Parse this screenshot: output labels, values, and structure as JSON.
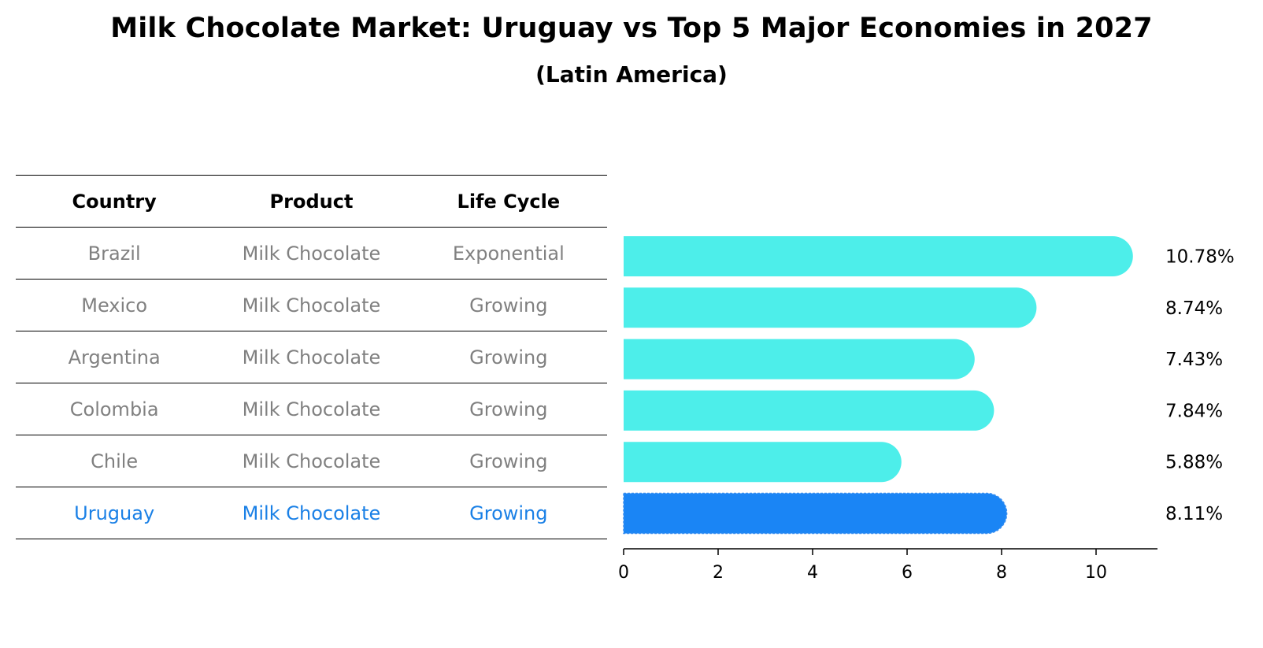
{
  "title": "Milk Chocolate Market: Uruguay vs Top 5 Major Economies in 2027",
  "subtitle": "(Latin America)",
  "table": {
    "headers": [
      "Country",
      "Product",
      "Life Cycle"
    ],
    "rows": [
      {
        "country": "Brazil",
        "product": "Milk Chocolate",
        "life_cycle": "Exponential",
        "highlight": false
      },
      {
        "country": "Mexico",
        "product": "Milk Chocolate",
        "life_cycle": "Growing",
        "highlight": false
      },
      {
        "country": "Argentina",
        "product": "Milk Chocolate",
        "life_cycle": "Growing",
        "highlight": false
      },
      {
        "country": "Colombia",
        "product": "Milk Chocolate",
        "life_cycle": "Growing",
        "highlight": false
      },
      {
        "country": "Chile",
        "product": "Milk Chocolate",
        "life_cycle": "Growing",
        "highlight": false
      },
      {
        "country": "Uruguay",
        "product": "Milk Chocolate",
        "life_cycle": "Growing",
        "highlight": true
      }
    ]
  },
  "colors": {
    "bar": "#4deeea",
    "highlight_bar": "#1a85f5",
    "highlight_text": "#1a80e6",
    "muted_text": "#808080"
  },
  "chart_data": {
    "type": "bar",
    "orientation": "horizontal",
    "categories": [
      "Brazil",
      "Mexico",
      "Argentina",
      "Colombia",
      "Chile",
      "Uruguay"
    ],
    "values": [
      10.78,
      8.74,
      7.43,
      7.84,
      5.88,
      8.11
    ],
    "value_labels": [
      "10.78%",
      "8.74%",
      "7.43%",
      "7.84%",
      "5.88%",
      "8.11%"
    ],
    "highlight": "Uruguay",
    "xlim": [
      0,
      11.3
    ],
    "xticks": [
      0,
      2,
      4,
      6,
      8,
      10
    ],
    "grid": false
  }
}
